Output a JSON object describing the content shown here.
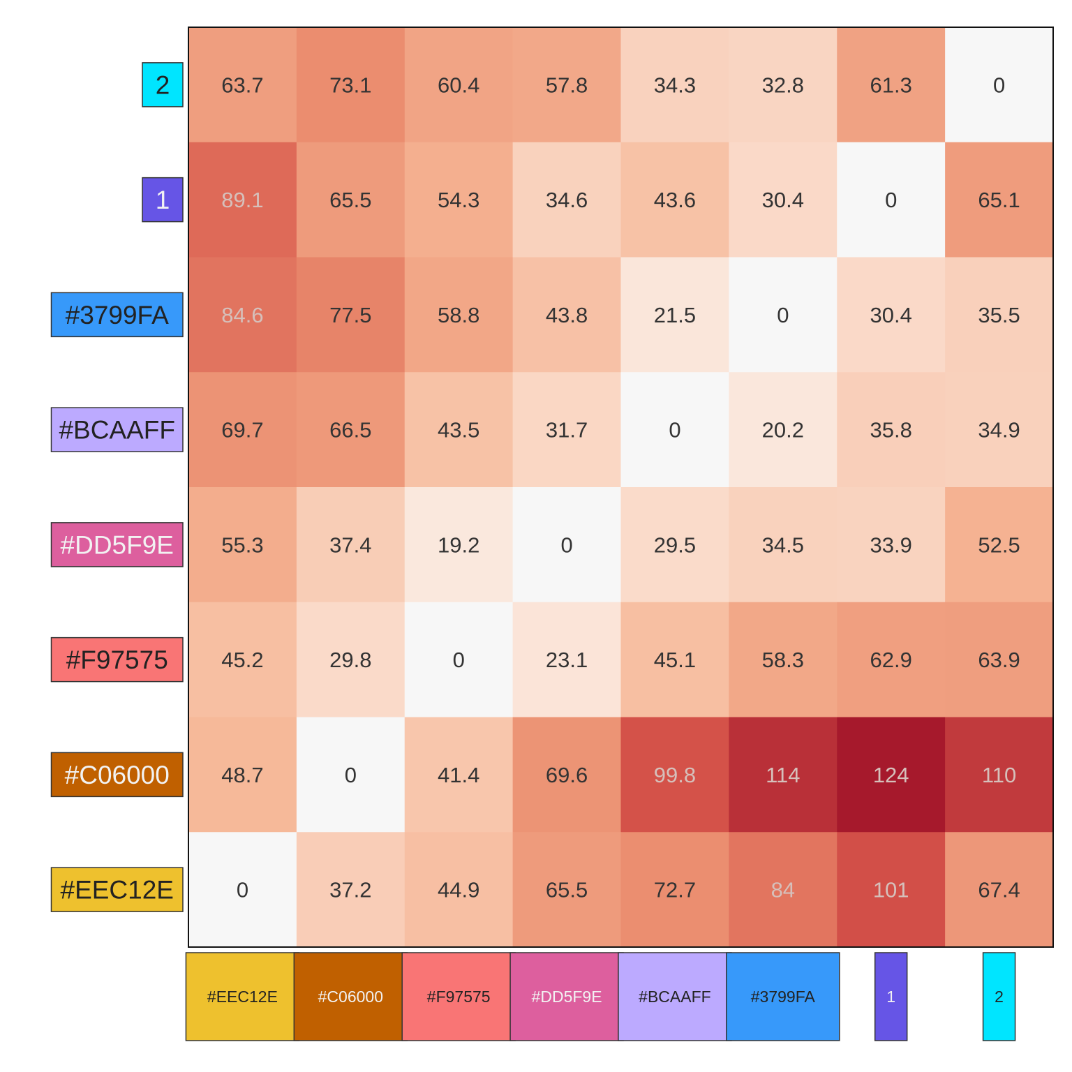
{
  "chart_data": {
    "type": "heatmap",
    "title": "",
    "xlabel": "",
    "ylabel": "",
    "legend": "none",
    "grid": false,
    "color_scale": {
      "low": "#f7f7f7",
      "stops": [
        "#f7f7f7",
        "#fbe3d6",
        "#f6b797",
        "#ea8b6d",
        "#d5534a",
        "#a6192c"
      ],
      "domain": [
        0,
        124
      ]
    },
    "columns": [
      {
        "label": "#EEC12E",
        "color": "#EEC12E",
        "text_color": "#222222"
      },
      {
        "label": "#C06000",
        "color": "#C06000",
        "text_color": "#f2f2f2"
      },
      {
        "label": "#F97575",
        "color": "#F97575",
        "text_color": "#222222"
      },
      {
        "label": "#DD5F9E",
        "color": "#DD5F9E",
        "text_color": "#f2f2f2"
      },
      {
        "label": "#BCAAFF",
        "color": "#BCAAFF",
        "text_color": "#222222"
      },
      {
        "label": "#3799FA",
        "color": "#3799FA",
        "text_color": "#222222"
      },
      {
        "label": "1",
        "color": "#6655E6",
        "text_color": "#f2f2f2"
      },
      {
        "label": "2",
        "color": "#00E5FF",
        "text_color": "#222222"
      }
    ],
    "rows": [
      {
        "label": "2",
        "color": "#00E5FF",
        "text_color": "#222222",
        "values": [
          63.7,
          73.1,
          60.4,
          57.8,
          34.3,
          32.8,
          61.3,
          0
        ]
      },
      {
        "label": "1",
        "color": "#6655E6",
        "text_color": "#f2f2f2",
        "values": [
          89.1,
          65.5,
          54.3,
          34.6,
          43.6,
          30.4,
          0,
          65.1
        ]
      },
      {
        "label": "#3799FA",
        "color": "#3799FA",
        "text_color": "#222222",
        "values": [
          84.6,
          77.5,
          58.8,
          43.8,
          21.5,
          0,
          30.4,
          35.5
        ]
      },
      {
        "label": "#BCAAFF",
        "color": "#BCAAFF",
        "text_color": "#222222",
        "values": [
          69.7,
          66.5,
          43.5,
          31.7,
          0,
          20.2,
          35.8,
          34.9
        ]
      },
      {
        "label": "#DD5F9E",
        "color": "#DD5F9E",
        "text_color": "#f2f2f2",
        "values": [
          55.3,
          37.4,
          19.2,
          0,
          29.5,
          34.5,
          33.9,
          52.5
        ]
      },
      {
        "label": "#F97575",
        "color": "#F97575",
        "text_color": "#222222",
        "values": [
          45.2,
          29.8,
          0,
          23.1,
          45.1,
          58.3,
          62.9,
          63.9
        ]
      },
      {
        "label": "#C06000",
        "color": "#C06000",
        "text_color": "#f2f2f2",
        "values": [
          48.7,
          0,
          41.4,
          69.6,
          99.8,
          114,
          124,
          110
        ]
      },
      {
        "label": "#EEC12E",
        "color": "#EEC12E",
        "text_color": "#222222",
        "values": [
          0,
          37.2,
          44.9,
          65.5,
          72.7,
          84,
          101,
          67.4
        ]
      }
    ]
  }
}
